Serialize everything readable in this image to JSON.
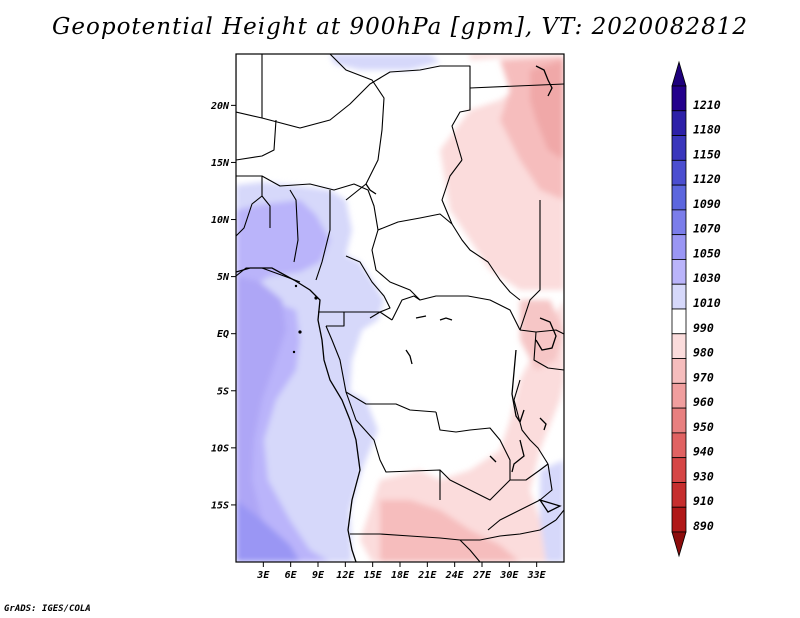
{
  "title": "Geopotential Height at 900hPa [gpm], VT: 2020082812",
  "footer": "GrADS: IGES/COLA",
  "map": {
    "lon_range": [
      0,
      36
    ],
    "lat_range": [
      -20,
      24.5
    ],
    "lat_ticks": [
      {
        "value": 20,
        "label": "20N"
      },
      {
        "value": 15,
        "label": "15N"
      },
      {
        "value": 10,
        "label": "10N"
      },
      {
        "value": 5,
        "label": "5N"
      },
      {
        "value": 0,
        "label": "EQ"
      },
      {
        "value": -5,
        "label": "5S"
      },
      {
        "value": -10,
        "label": "10S"
      },
      {
        "value": -15,
        "label": "15S"
      }
    ],
    "lon_ticks": [
      {
        "value": 3,
        "label": "3E"
      },
      {
        "value": 6,
        "label": "6E"
      },
      {
        "value": 9,
        "label": "9E"
      },
      {
        "value": 12,
        "label": "12E"
      },
      {
        "value": 15,
        "label": "15E"
      },
      {
        "value": 18,
        "label": "18E"
      },
      {
        "value": 21,
        "label": "21E"
      },
      {
        "value": 24,
        "label": "24E"
      },
      {
        "value": 27,
        "label": "27E"
      },
      {
        "value": 30,
        "label": "30E"
      },
      {
        "value": 33,
        "label": "33E"
      }
    ]
  },
  "colorbar": {
    "levels": [
      {
        "label": "1210",
        "color": "#24008c"
      },
      {
        "label": "1180",
        "color": "#2d20a8"
      },
      {
        "label": "1150",
        "color": "#3a36bc"
      },
      {
        "label": "1120",
        "color": "#4b4ed0"
      },
      {
        "label": "1090",
        "color": "#5c66de"
      },
      {
        "label": "1070",
        "color": "#7b7dea"
      },
      {
        "label": "1050",
        "color": "#9a96f4"
      },
      {
        "label": "1030",
        "color": "#bab4fa"
      },
      {
        "label": "1010",
        "color": "#d6d8fa"
      },
      {
        "label": "990",
        "color": "#ffffff"
      },
      {
        "label": "980",
        "color": "#fbdcdc"
      },
      {
        "label": "970",
        "color": "#f6bdbd"
      },
      {
        "label": "960",
        "color": "#f09e9e"
      },
      {
        "label": "950",
        "color": "#e88080"
      },
      {
        "label": "940",
        "color": "#e06262"
      },
      {
        "label": "930",
        "color": "#d64646"
      },
      {
        "label": "910",
        "color": "#c62e2e"
      },
      {
        "label": "890",
        "color": "#b01818"
      }
    ],
    "top_arrow_color": "#1e007c",
    "bottom_arrow_color": "#8c0c0c"
  }
}
